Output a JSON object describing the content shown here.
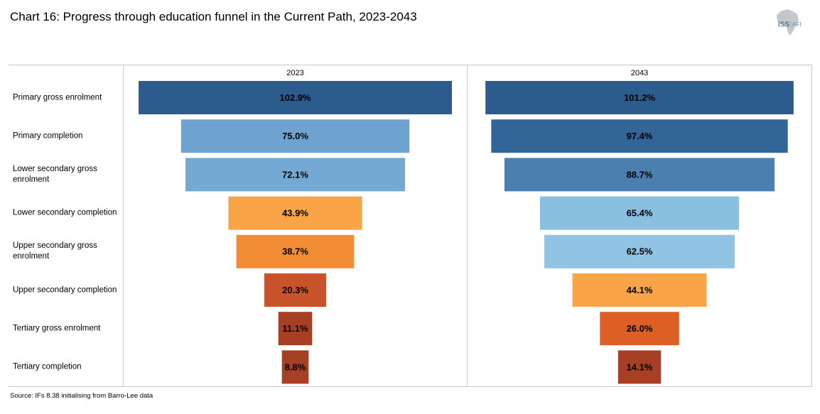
{
  "chart_data": {
    "type": "funnel",
    "title": "Chart 16: Progress through education funnel in the Current Path, 2023-2043",
    "source": "Source: IFs 8.38 initialising from Barro-Lee data",
    "logo": {
      "left": "ISS",
      "right": "AFI"
    },
    "categories": [
      "Primary gross enrolment",
      "Primary completion",
      "Lower secondary gross enrolment",
      "Lower secondary completion",
      "Upper secondary gross enrolment",
      "Upper secondary completion",
      "Tertiary gross enrolment",
      "Tertiary completion"
    ],
    "series": [
      {
        "name": "2023",
        "values": [
          102.9,
          75.0,
          72.1,
          43.9,
          38.7,
          20.3,
          11.1,
          8.8
        ],
        "value_labels": [
          "102.9%",
          "75.0%",
          "72.1%",
          "43.9%",
          "38.7%",
          "20.3%",
          "11.1%",
          "8.8%"
        ],
        "colors": [
          "#2c5c8e",
          "#6fa3cf",
          "#73a9d3",
          "#f9a446",
          "#f28c35",
          "#c9532b",
          "#a63f24",
          "#a63f24"
        ]
      },
      {
        "name": "2043",
        "values": [
          101.2,
          97.4,
          88.7,
          65.4,
          62.5,
          44.1,
          26.0,
          14.1
        ],
        "value_labels": [
          "101.2%",
          "97.4%",
          "88.7%",
          "65.4%",
          "62.5%",
          "44.1%",
          "26.0%",
          "14.1%"
        ],
        "colors": [
          "#2c5c8e",
          "#326699",
          "#4a7fb0",
          "#8bbfe0",
          "#91c3e3",
          "#f9a446",
          "#dd5f25",
          "#a63f24"
        ]
      }
    ]
  }
}
